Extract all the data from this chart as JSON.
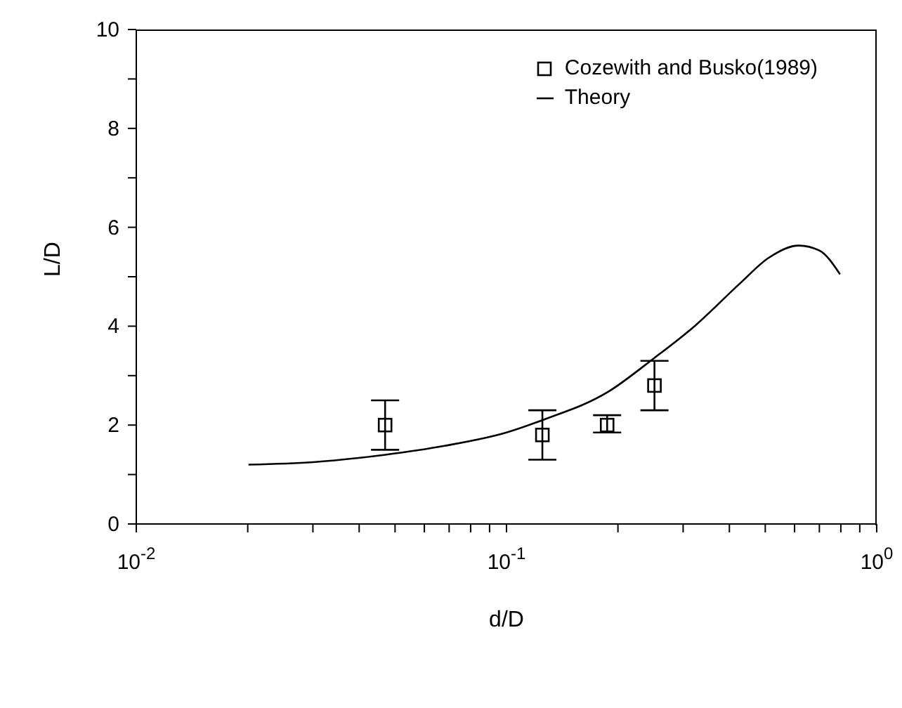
{
  "chart_data": {
    "type": "scatter",
    "xlabel": "d/D",
    "ylabel": "L/D",
    "log": "x",
    "xlim": [
      0.01,
      1
    ],
    "ylim": [
      0,
      10
    ],
    "xticks": [
      {
        "value": 0.01,
        "label": "10$^{-2}$"
      },
      {
        "value": 0.02,
        "label": null
      },
      {
        "value": 0.03,
        "label": null
      },
      {
        "value": 0.04,
        "label": null
      },
      {
        "value": 0.05,
        "label": null
      },
      {
        "value": 0.06,
        "label": null
      },
      {
        "value": 0.07,
        "label": null
      },
      {
        "value": 0.08,
        "label": null
      },
      {
        "value": 0.09,
        "label": null
      },
      {
        "value": 0.1,
        "label": "10$^{-1}$"
      },
      {
        "value": 0.2,
        "label": null
      },
      {
        "value": 0.3,
        "label": null
      },
      {
        "value": 0.4,
        "label": null
      },
      {
        "value": 0.5,
        "label": null
      },
      {
        "value": 0.6,
        "label": null
      },
      {
        "value": 0.7,
        "label": null
      },
      {
        "value": 0.8,
        "label": null
      },
      {
        "value": 0.9,
        "label": null
      },
      {
        "value": 1,
        "label": "10$^{0}$"
      }
    ],
    "yticks": [
      0,
      {
        "value": 1,
        "label": null
      },
      2,
      {
        "value": 3,
        "label": null
      },
      4,
      {
        "value": 5,
        "label": null
      },
      6,
      {
        "value": 7,
        "label": null
      },
      8,
      {
        "value": 9,
        "label": null
      },
      10
    ],
    "grid": false,
    "legend": "top right",
    "series": [
      {
        "name": "Cozewith and Busko(1989)",
        "type": "scatter",
        "color": "#000000",
        "marker": "square",
        "x": [
          0.047,
          0.125,
          0.187,
          0.251
        ],
        "values": [
          2.0,
          1.8,
          2.0,
          2.8
        ],
        "errors": [
          [
            1.5,
            2.5
          ],
          [
            1.3,
            2.3
          ],
          [
            1.85,
            2.2
          ],
          [
            2.3,
            3.3
          ]
        ]
      },
      {
        "name": "Theory",
        "type": "line",
        "color": "#000000",
        "marker": "none",
        "line_style": "solid",
        "x": [
          0.0201,
          0.03,
          0.047,
          0.068,
          0.1,
          0.125,
          0.187,
          0.25,
          0.322,
          0.428,
          0.51,
          0.616,
          0.7,
          0.796
        ],
        "values": [
          1.2,
          1.25,
          1.4,
          1.58,
          1.85,
          2.1,
          2.66,
          3.35,
          4.0,
          4.87,
          5.38,
          5.63,
          5.53,
          5.05
        ]
      }
    ]
  }
}
